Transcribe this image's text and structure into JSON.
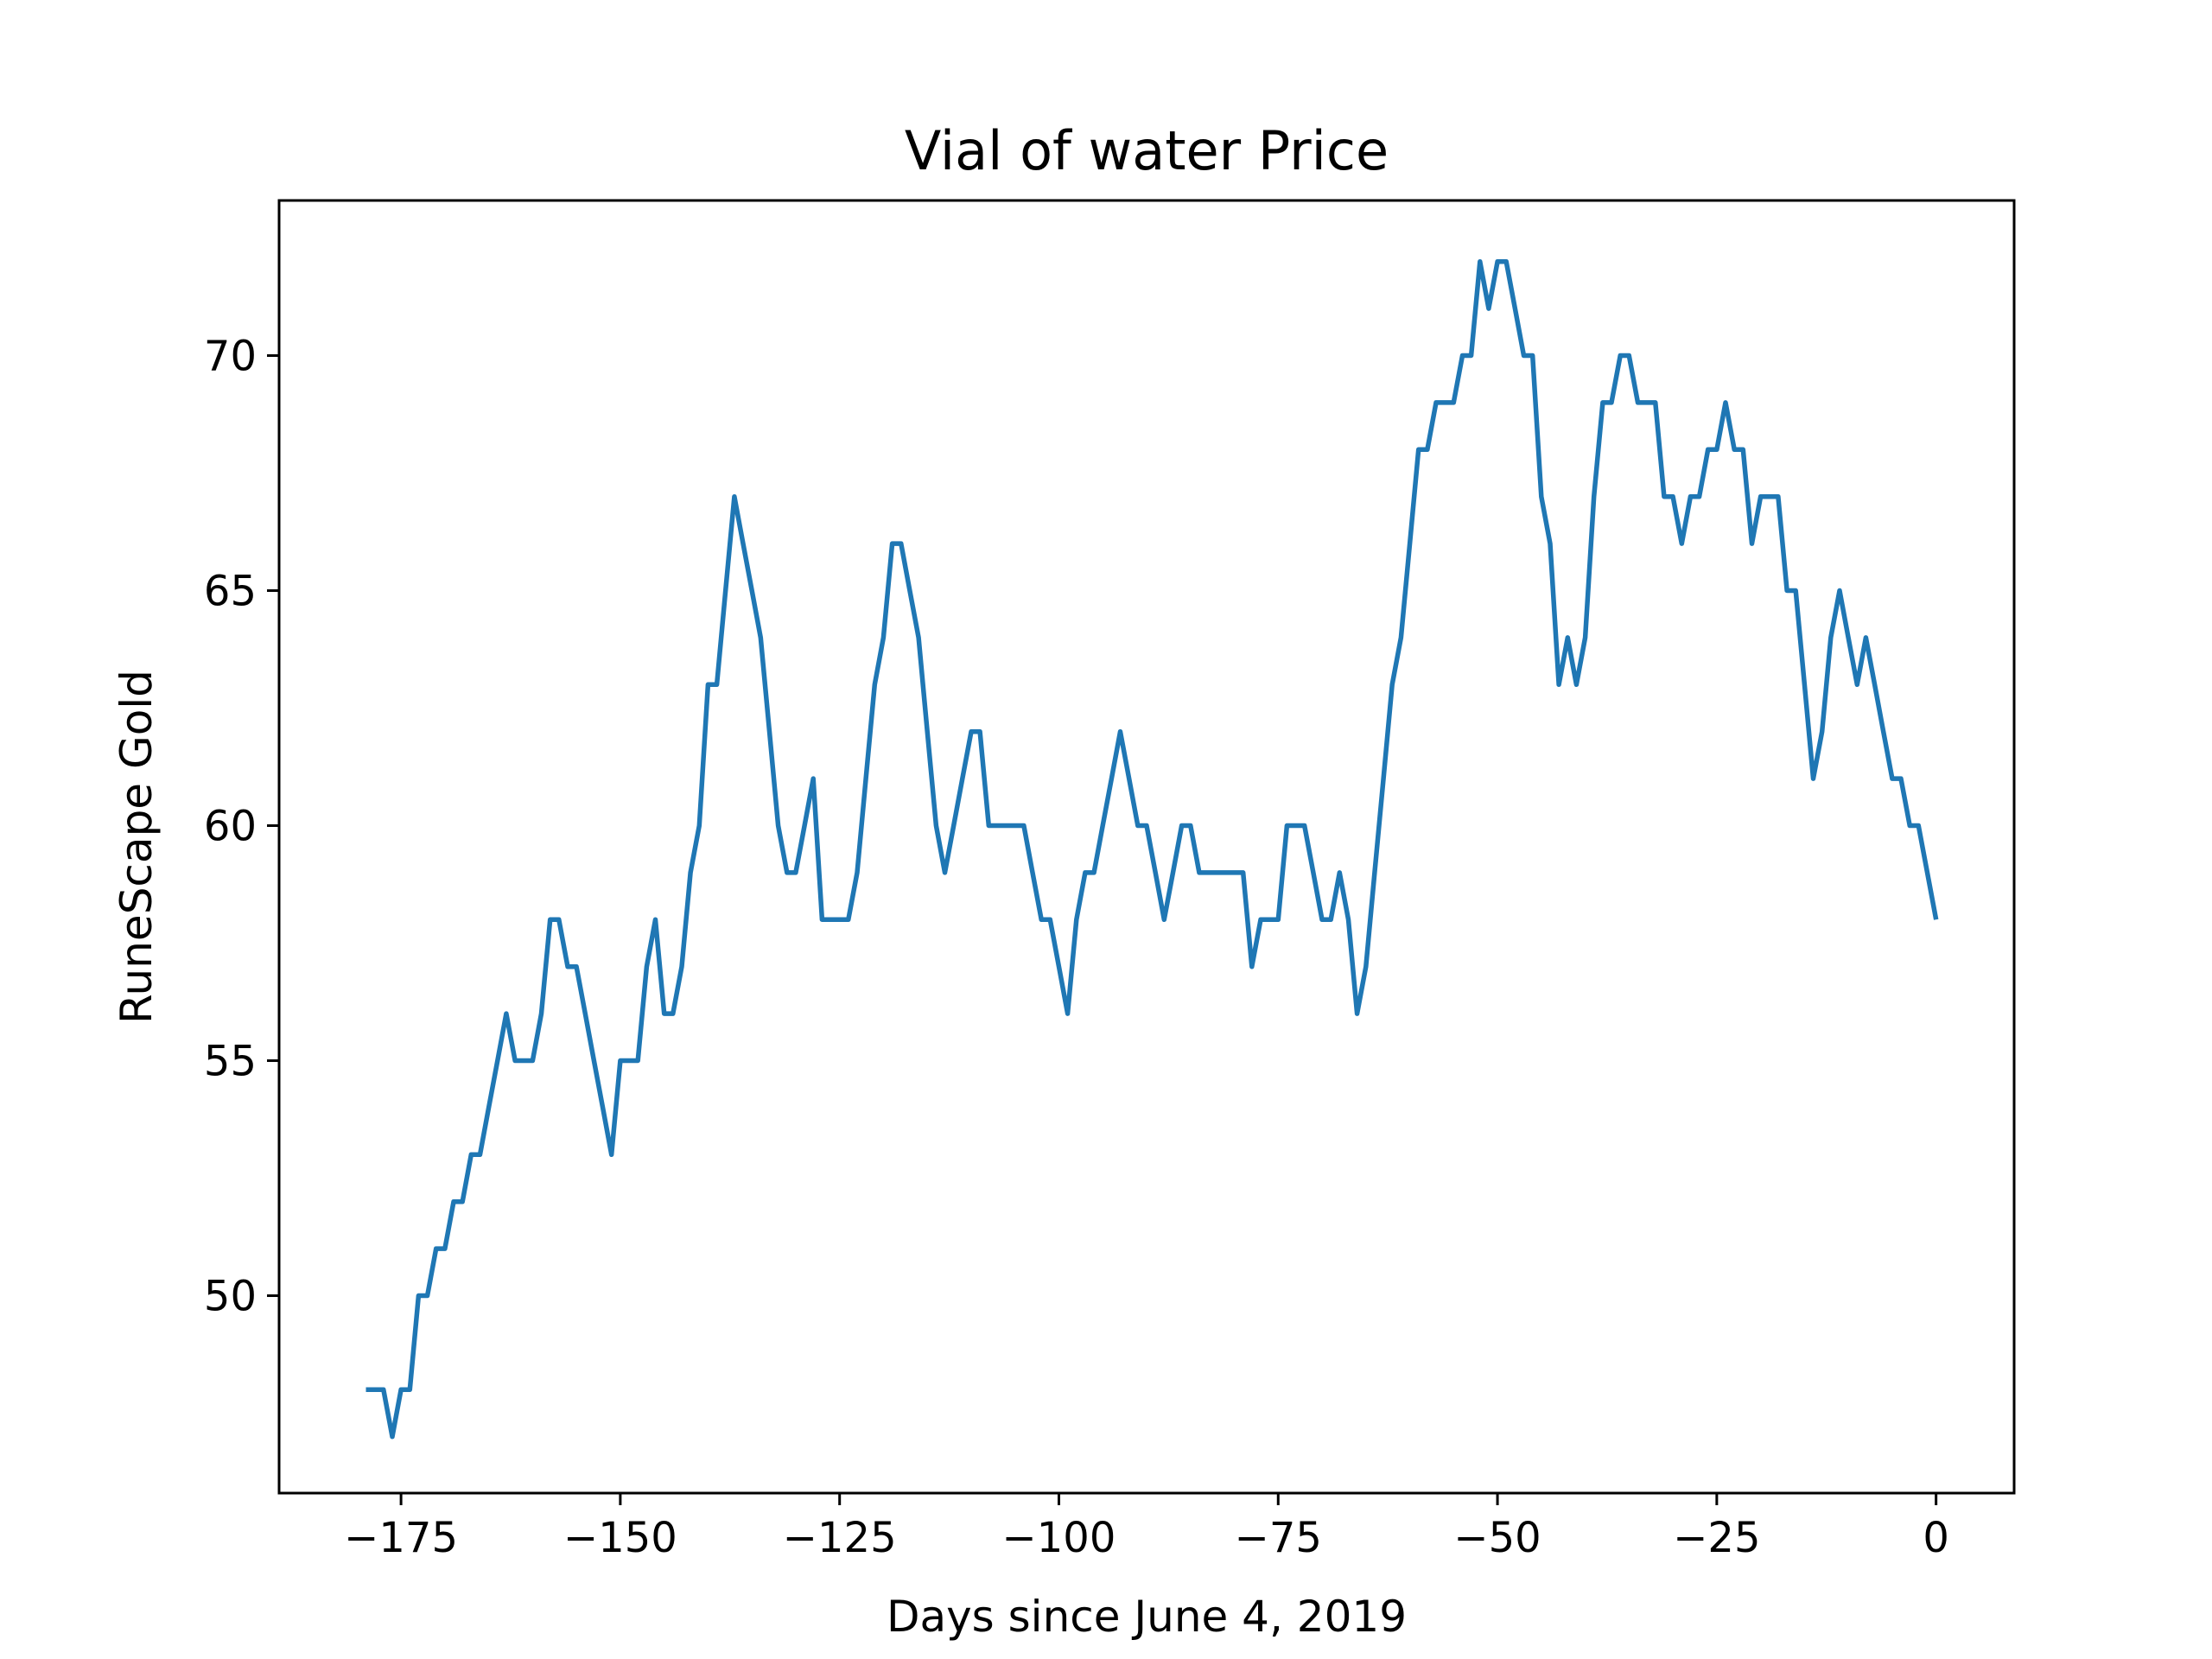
{
  "chart_data": {
    "type": "line",
    "title": "Vial of water Price",
    "xlabel": "Days since June 4, 2019",
    "ylabel": "RuneScape Gold",
    "xlim": [
      -188.9,
      8.9
    ],
    "ylim": [
      45.8,
      73.3
    ],
    "xticks": [
      -175,
      -150,
      -125,
      -100,
      -75,
      -50,
      -25,
      0
    ],
    "xtick_labels": [
      "−175",
      "−150",
      "−125",
      "−100",
      "−75",
      "−50",
      "−25",
      "0"
    ],
    "yticks": [
      50,
      55,
      60,
      65,
      70
    ],
    "ytick_labels": [
      "50",
      "55",
      "60",
      "65",
      "70"
    ],
    "grid": false,
    "line_color": "#1f77b4",
    "series": [
      {
        "x": [
          -179,
          -178,
          -177,
          -176,
          -175,
          -174,
          -173,
          -172,
          -171,
          -170,
          -169,
          -168,
          -167,
          -166,
          -165,
          -164,
          -163,
          -162,
          -161,
          -160,
          -159,
          -158,
          -157,
          -156,
          -155,
          -154,
          -153,
          -152,
          -151,
          -150,
          -149,
          -148,
          -147,
          -146,
          -145,
          -144,
          -143,
          -142,
          -141,
          -140,
          -139,
          -138,
          -137,
          -136,
          -135,
          -134,
          -133,
          -132,
          -131,
          -130,
          -129,
          -128,
          -127,
          -126,
          -125,
          -124,
          -123,
          -122,
          -121,
          -120,
          -119,
          -118,
          -117,
          -116,
          -115,
          -114,
          -113,
          -112,
          -111,
          -110,
          -109,
          -108,
          -107,
          -106,
          -105,
          -104,
          -103,
          -102,
          -101,
          -100,
          -99,
          -98,
          -97,
          -96,
          -95,
          -94,
          -93,
          -92,
          -91,
          -90,
          -89,
          -88,
          -87,
          -86,
          -85,
          -84,
          -83,
          -82,
          -81,
          -80,
          -79,
          -78,
          -77,
          -76,
          -75,
          -74,
          -73,
          -72,
          -71,
          -70,
          -69,
          -68,
          -67,
          -66,
          -65,
          -64,
          -63,
          -62,
          -61,
          -60,
          -59,
          -58,
          -57,
          -56,
          -55,
          -54,
          -53,
          -52,
          -51,
          -50,
          -49,
          -48,
          -47,
          -46,
          -45,
          -44,
          -43,
          -42,
          -41,
          -40,
          -39,
          -38,
          -37,
          -36,
          -35,
          -34,
          -33,
          -32,
          -31,
          -30,
          -29,
          -28,
          -27,
          -26,
          -25,
          -24,
          -23,
          -22,
          -21,
          -20,
          -19,
          -18,
          -17,
          -16,
          -15,
          -14,
          -13,
          -12,
          -11,
          -10,
          -9,
          -8,
          -7,
          -6,
          -5,
          -4,
          -3,
          -2,
          -1,
          0
        ],
        "y": [
          48,
          48,
          48,
          47,
          48,
          48,
          50,
          50,
          51,
          51,
          52,
          52,
          53,
          53,
          54,
          55,
          56,
          55,
          55,
          55,
          56,
          58,
          58,
          57,
          57,
          56,
          55,
          54,
          53,
          55,
          55,
          55,
          57,
          58,
          56,
          56,
          57,
          59,
          60,
          63,
          63,
          65,
          67,
          66,
          65,
          64,
          62,
          60,
          59,
          59,
          60,
          61,
          58,
          58,
          58,
          58,
          59,
          61,
          63,
          64,
          66,
          66,
          65,
          64,
          62,
          60,
          59,
          60,
          61,
          62,
          62,
          60,
          60,
          60,
          60,
          60,
          59,
          58,
          58,
          57,
          56,
          58,
          59,
          59,
          60,
          61,
          62,
          61,
          60,
          60,
          59,
          58,
          59,
          60,
          60,
          59,
          59,
          59,
          59,
          59,
          59,
          57,
          58,
          58,
          58,
          60,
          60,
          60,
          59,
          58,
          58,
          59,
          58,
          56,
          57,
          59,
          61,
          63,
          64,
          66,
          68,
          68,
          69,
          69,
          69,
          70,
          70,
          72,
          71,
          72,
          72,
          71,
          70,
          70,
          67,
          66,
          63,
          64,
          63,
          64,
          67,
          69,
          69,
          70,
          70,
          69,
          69,
          69,
          67,
          67,
          66,
          67,
          67,
          68,
          68,
          69,
          68,
          68,
          66,
          67,
          67,
          67,
          65,
          65,
          63,
          61,
          62,
          64,
          65,
          64,
          63,
          64,
          63,
          62,
          61,
          61,
          60,
          60,
          59,
          58
        ]
      }
    ]
  }
}
